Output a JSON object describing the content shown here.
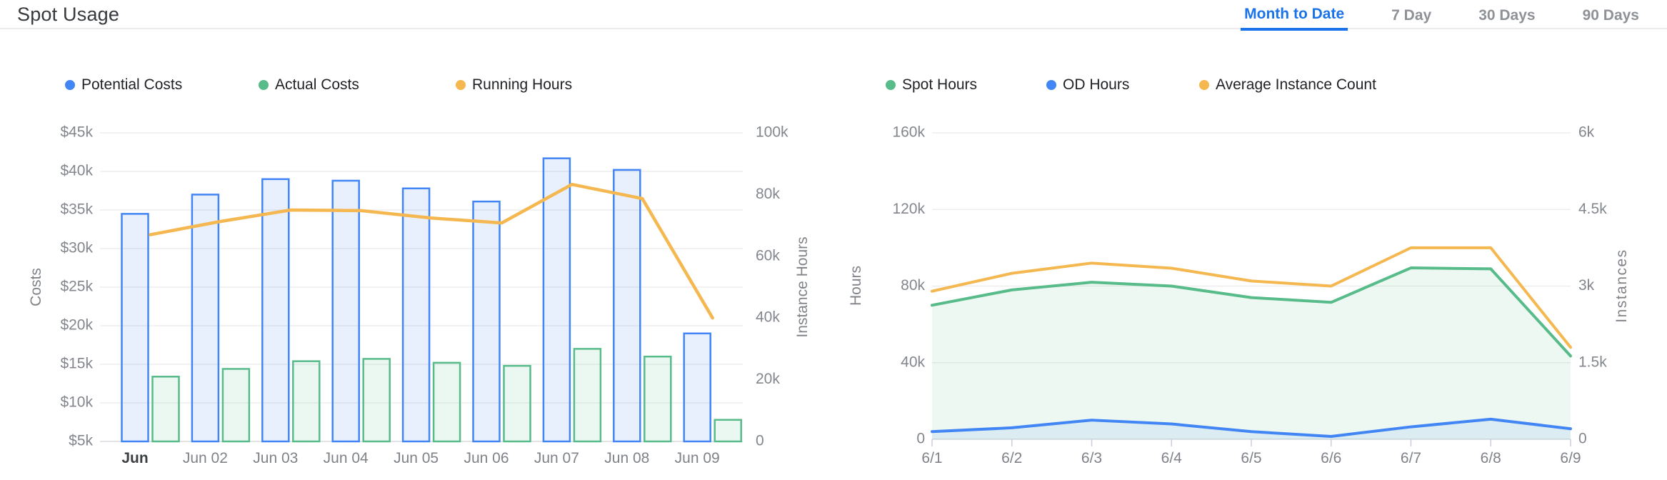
{
  "header": {
    "title": "Spot Usage",
    "tabs": [
      {
        "label": "Month to Date",
        "active": true
      },
      {
        "label": "7 Day",
        "active": false
      },
      {
        "label": "30 Days",
        "active": false
      },
      {
        "label": "90 Days",
        "active": false
      }
    ]
  },
  "colors": {
    "blue": "#4285F4",
    "green": "#57BB8A",
    "orange": "#F5B74F",
    "blue_bar_fill": "rgba(66,133,244,0.12)",
    "green_bar_fill": "rgba(87,187,138,0.12)",
    "blue_area_fill": "rgba(66,133,244,0.10)",
    "green_area_fill": "rgba(87,187,138,0.11)",
    "grid": "#EDEDEE",
    "axis_line": "#E2E4E7",
    "tick_mark": "#C9CED8",
    "tab_active": "#1A73E8",
    "tab_inactive": "#8E9297"
  },
  "chart_data": [
    {
      "id": "spot-costs",
      "type": "bar",
      "categories": [
        "Jun",
        "Jun 02",
        "Jun 03",
        "Jun 04",
        "Jun 05",
        "Jun 06",
        "Jun 07",
        "Jun 08",
        "Jun 09"
      ],
      "first_category_emphasized": true,
      "legend": [
        {
          "name": "Potential Costs",
          "color": "blue"
        },
        {
          "name": "Actual Costs",
          "color": "green"
        },
        {
          "name": "Running Hours",
          "color": "orange"
        }
      ],
      "series": [
        {
          "name": "Potential Costs",
          "type": "bar",
          "axis": "left",
          "color": "blue",
          "values": [
            34500,
            37000,
            39000,
            38800,
            37800,
            36100,
            41700,
            40200,
            19000
          ]
        },
        {
          "name": "Actual Costs",
          "type": "bar",
          "axis": "left",
          "color": "green",
          "values": [
            13400,
            14400,
            15400,
            15700,
            15200,
            14800,
            17000,
            16000,
            7800
          ]
        },
        {
          "name": "Running Hours",
          "type": "line",
          "axis": "right",
          "color": "orange",
          "values": [
            67000,
            71300,
            75000,
            74800,
            72400,
            70800,
            83300,
            78700,
            40000
          ]
        }
      ],
      "axis_left": {
        "label": "Costs",
        "min": 5000,
        "max": 45000,
        "ticks": [
          "$45k",
          "$40k",
          "$35k",
          "$30k",
          "$25k",
          "$20k",
          "$15k",
          "$10k",
          "$5k"
        ]
      },
      "axis_right": {
        "label": "Instance Hours",
        "min": 0,
        "max": 100000,
        "ticks": [
          "100k",
          "80k",
          "60k",
          "40k",
          "20k",
          "0"
        ]
      },
      "grid": true,
      "legend_position": "top"
    },
    {
      "id": "spot-hours",
      "type": "area",
      "categories": [
        "6/1",
        "6/2",
        "6/3",
        "6/4",
        "6/5",
        "6/6",
        "6/7",
        "6/8",
        "6/9"
      ],
      "first_category_emphasized": false,
      "legend": [
        {
          "name": "Spot Hours",
          "color": "green"
        },
        {
          "name": "OD Hours",
          "color": "blue"
        },
        {
          "name": "Average Instance Count",
          "color": "orange"
        }
      ],
      "series": [
        {
          "name": "Spot Hours",
          "type": "area",
          "axis": "left",
          "color": "green",
          "values": [
            70000,
            78000,
            82000,
            80000,
            74000,
            71500,
            89500,
            89000,
            43500
          ]
        },
        {
          "name": "OD Hours",
          "type": "area",
          "axis": "left",
          "color": "blue",
          "values": [
            4000,
            6000,
            10000,
            8000,
            4000,
            1500,
            6500,
            10500,
            5500
          ]
        },
        {
          "name": "Average Instance Count",
          "type": "line",
          "axis": "right",
          "color": "orange",
          "values": [
            2900,
            3250,
            3450,
            3350,
            3100,
            3000,
            3750,
            3750,
            1800
          ]
        }
      ],
      "axis_left": {
        "label": "Hours",
        "min": 0,
        "max": 160000,
        "ticks": [
          "160k",
          "120k",
          "80k",
          "40k",
          "0"
        ]
      },
      "axis_right": {
        "label": "Instances",
        "min": 0,
        "max": 6000,
        "ticks": [
          "6k",
          "4.5k",
          "3k",
          "1.5k",
          "0"
        ]
      },
      "grid": true,
      "legend_position": "top"
    }
  ]
}
